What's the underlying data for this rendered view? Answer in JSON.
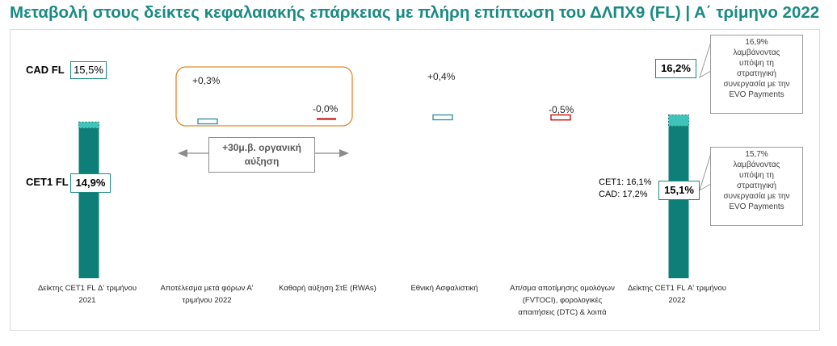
{
  "header": {
    "title": "Μεταβολή στους δείκτες κεφαλαιακής επάρκειας με πλήρη επίπτωση του ΔΛΠΧ9 (FL) | Α΄ τρίμηνο 2022"
  },
  "row_labels": {
    "cad": "CAD FL",
    "cet1": "CET1 FL"
  },
  "organic_growth": {
    "line1": "+30μ.β. οργανική",
    "line2": "αύξηση"
  },
  "chart_data": {
    "type": "bar",
    "subtype": "waterfall",
    "unit": "%",
    "categories": [
      "Δείκτης CET1 FL Δ' τριμήνου 2021",
      "Αποτέλεσμα μετά φόρων Α' τριμήνου 2022",
      "Καθαρή αύξηση ΣτΕ (RWAs)",
      "Εθνική Ασφαλιστική",
      "Απ/σμα αποτίμησης ομολόγων (FVTOCI), φορολογικές απαιτήσεις (DTC) & λοιπά",
      "Δείκτης CET1 FL Α' τριμήνου 2022"
    ],
    "category_lines": [
      [
        "Δείκτης CET1 FL Δ' τριμήνου",
        "2021"
      ],
      [
        "Αποτέλεσμα μετά φόρων Α'",
        "τριμήνου 2022"
      ],
      [
        "Καθαρή αύξηση ΣτΕ (RWAs)"
      ],
      [
        "Εθνική Ασφαλιστική"
      ],
      [
        "Απ/σμα αποτίμησης ομολόγων",
        "(FVTOCI), φορολογικές",
        "απαιτήσεις (DTC) & λοιπά"
      ],
      [
        "Δείκτης CET1 FL Α' τριμήνου",
        "2022"
      ]
    ],
    "cet1": {
      "start": 14.9,
      "end": 15.1,
      "start_label": "14,9%",
      "end_label": "15,1%"
    },
    "cad": {
      "start": 15.5,
      "end": 16.2,
      "start_label": "15,5%",
      "end_label": "16,2%"
    },
    "changes": [
      {
        "category_index": 1,
        "value": 0.3,
        "label": "+0,3%",
        "direction": "positive"
      },
      {
        "category_index": 2,
        "value": -0.0,
        "label": "-0,0%",
        "direction": "negative"
      },
      {
        "category_index": 3,
        "value": 0.4,
        "label": "+0,4%",
        "direction": "positive"
      },
      {
        "category_index": 4,
        "value": -0.5,
        "label": "-0,5%",
        "direction": "negative"
      }
    ],
    "colors": {
      "bar": "#0e7f78",
      "cad_top": "#3fc3bb",
      "positive": "#2a8c9a",
      "negative": "#c00000",
      "highlight_box": "#e0892d",
      "title": "#1a8a84"
    }
  },
  "annotations": {
    "pro_forma_note": {
      "line1": "CET1: 16,1%",
      "line2": "CAD: 17,2%"
    },
    "callout_cad": [
      "16,9%",
      "λαμβάνοντας",
      "υπόψη τη",
      "στρατηγική",
      "συνεργασία με την",
      "EVO Payments"
    ],
    "callout_cet1": [
      "15,7%",
      "λαμβάνοντας",
      "υπόψη τη",
      "στρατηγική",
      "συνεργασία με την",
      "EVO Payments"
    ]
  }
}
